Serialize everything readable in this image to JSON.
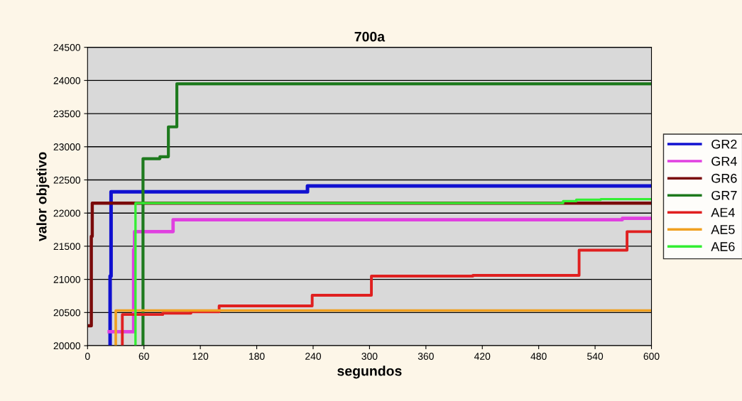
{
  "chart_data": {
    "type": "step",
    "title": "700a",
    "xlabel": "segundos",
    "ylabel": "valor objetivo",
    "xlim": [
      0,
      600
    ],
    "xticks": [
      0,
      60,
      120,
      180,
      240,
      300,
      360,
      420,
      480,
      540,
      600
    ],
    "ylim": [
      20000,
      24500
    ],
    "yticks": [
      20000,
      20500,
      21000,
      21500,
      22000,
      22500,
      23000,
      23500,
      24000,
      24500
    ],
    "grid": "y",
    "legend": "right",
    "marker": "none",
    "line_style": "solid",
    "series": [
      {
        "name": "GR2",
        "color": "#1010d0",
        "x": [
          24,
          24,
          25,
          234,
          600
        ],
        "values": [
          20000,
          21050,
          22320,
          22410,
          22410
        ]
      },
      {
        "name": "GR4",
        "color": "#e040e0",
        "x": [
          23,
          49,
          50,
          91,
          569,
          600
        ],
        "values": [
          20210,
          21450,
          21720,
          21900,
          21920,
          21920
        ]
      },
      {
        "name": "GR6",
        "color": "#7a0a0a",
        "x": [
          0,
          4,
          5,
          600
        ],
        "values": [
          20300,
          21650,
          22150,
          22150
        ]
      },
      {
        "name": "GR7",
        "color": "#1e7a1e",
        "x": [
          59,
          59,
          77,
          86,
          95,
          600
        ],
        "values": [
          20000,
          22820,
          22850,
          23300,
          23950,
          23950
        ]
      },
      {
        "name": "AE4",
        "color": "#e02020",
        "x": [
          37,
          37,
          80,
          110,
          140,
          239,
          302,
          410,
          523,
          574,
          600
        ],
        "values": [
          20000,
          20470,
          20490,
          20510,
          20600,
          20760,
          21050,
          21060,
          21440,
          21720,
          21720
        ]
      },
      {
        "name": "AE5",
        "color": "#f0a020",
        "x": [
          30,
          30,
          600
        ],
        "values": [
          20000,
          20530,
          20530
        ]
      },
      {
        "name": "AE6",
        "color": "#33ee33",
        "x": [
          51,
          51,
          506,
          520,
          546,
          600
        ],
        "values": [
          20000,
          22150,
          22180,
          22200,
          22210,
          22210
        ]
      }
    ]
  }
}
